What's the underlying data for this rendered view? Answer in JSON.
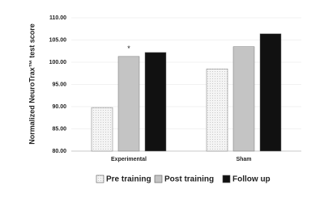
{
  "chart_data": {
    "type": "bar",
    "y_label": "Normalized NeuroTrax™ test score",
    "categories": [
      "Experimental",
      "Sham"
    ],
    "series": [
      {
        "name": "Pre training",
        "color": "#f2f2f2",
        "values": [
          89.8,
          98.5
        ]
      },
      {
        "name": "Post training",
        "color": "#c4c4c4",
        "values": [
          101.3,
          103.5
        ]
      },
      {
        "name": "Follow up",
        "color": "#111111",
        "values": [
          102.2,
          106.4
        ]
      }
    ],
    "annotations": [
      "*"
    ],
    "ylim": [
      80,
      110
    ],
    "yticks": [
      {
        "value": 80,
        "label": "80.00"
      },
      {
        "value": 85,
        "label": "85.00"
      },
      {
        "value": 90,
        "label": "90.00"
      },
      {
        "value": 95,
        "label": "95.00"
      },
      {
        "value": 100,
        "label": "100.00"
      },
      {
        "value": 105,
        "label": "105.00"
      },
      {
        "value": 110,
        "label": "110.00"
      }
    ],
    "grid": true,
    "legend": "bottom"
  }
}
